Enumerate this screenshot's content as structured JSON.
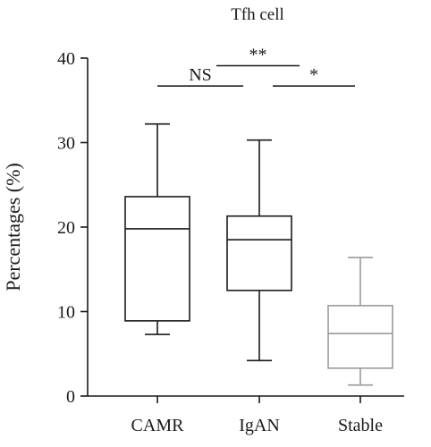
{
  "chart_data": {
    "type": "box",
    "title": "Tfh cell",
    "xlabel": "",
    "ylabel": "Percentages (%)",
    "categories": [
      "CAMR",
      "IgAN",
      "Stable"
    ],
    "ylim": [
      0,
      40
    ],
    "yticks": [
      0,
      10,
      20,
      30,
      40
    ],
    "grid": false,
    "series": [
      {
        "name": "CAMR",
        "min": 7.3,
        "q1": 8.9,
        "median": 19.8,
        "q3": 23.6,
        "max": 32.2,
        "color": "#1a1a1a"
      },
      {
        "name": "IgAN",
        "min": 4.2,
        "q1": 12.5,
        "median": 18.5,
        "q3": 21.3,
        "max": 30.3,
        "color": "#1a1a1a"
      },
      {
        "name": "Stable",
        "min": 1.3,
        "q1": 3.3,
        "median": 7.4,
        "q3": 10.7,
        "max": 16.4,
        "color": "#9a9a9a"
      }
    ],
    "annotations": [
      {
        "label": "NS",
        "from": 0,
        "to": 1,
        "y": 36.7
      },
      {
        "label": "**",
        "from": 1,
        "to": 2,
        "y": 39.1
      },
      {
        "label": "*",
        "from": 1,
        "to": 2,
        "y": 36.7
      }
    ]
  }
}
